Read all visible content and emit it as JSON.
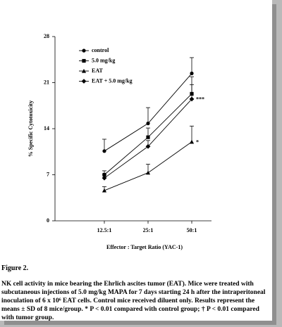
{
  "chart_data": {
    "type": "line",
    "categories": [
      "12.5:1",
      "25:1",
      "50:1"
    ],
    "series": [
      {
        "name": "control",
        "marker": "circle",
        "color": "#000000",
        "values": [
          10.6,
          14.8,
          22.4
        ],
        "errors": [
          1.8,
          2.4,
          2.4
        ]
      },
      {
        "name": "5.0 mg/kg",
        "marker": "square",
        "color": "#000000",
        "values": [
          7.0,
          12.7,
          19.3
        ],
        "errors": [
          0.6,
          1.4,
          2.6
        ]
      },
      {
        "name": "EAT",
        "marker": "triangle",
        "color": "#000000",
        "values": [
          4.6,
          7.3,
          12.0
        ],
        "errors": [
          0.6,
          1.3,
          2.4
        ]
      },
      {
        "name": "EAT + 5.0 mg/kg",
        "marker": "diamond",
        "color": "#000000",
        "values": [
          6.5,
          11.3,
          18.5
        ],
        "errors": [
          0.5,
          0.9,
          2.2
        ]
      }
    ],
    "annotations": [
      {
        "text": "***",
        "series": 3,
        "index": 2
      },
      {
        "text": "*",
        "series": 2,
        "index": 2
      }
    ],
    "ylim": [
      0,
      28
    ],
    "yticks": [
      0,
      7,
      14,
      21,
      28
    ],
    "xlabel": "Effector : Target Ratio (YAC-1)",
    "ylabel": "% Specific Cytotoxicity"
  },
  "caption": {
    "label": "Figure 2.",
    "text": "NK cell activity in mice bearing the Ehrlich ascites tumor (EAT). Mice were treated with subcutaneous injections of 5.0 mg/kg MAPA for 7 days starting 24 h after the intraperitoneal inoculation of 6 x 10⁶ EAT cells. Control mice received diluent only. Results represent the means ± SD of 8 mice/group. * P < 0.01 compared with control group;  † P < 0.01 compared with tumor group."
  }
}
